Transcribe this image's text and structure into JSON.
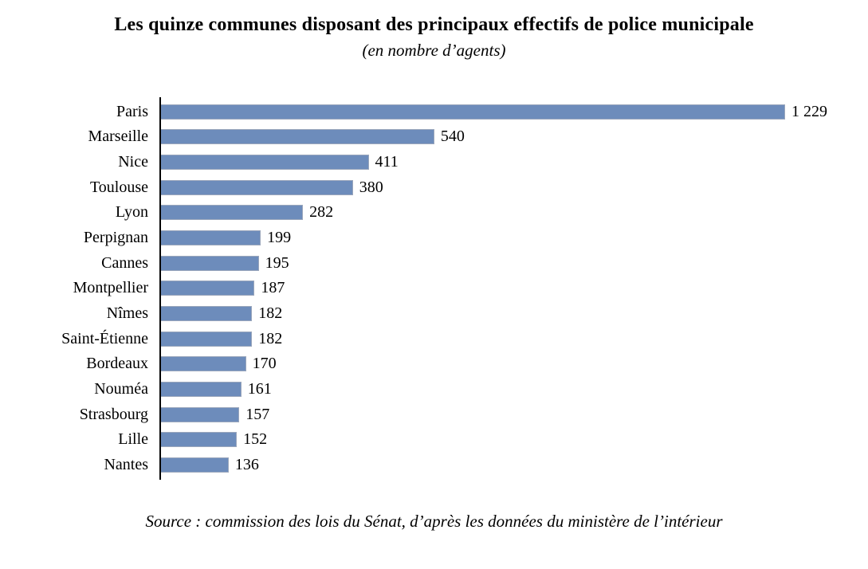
{
  "chart_data": {
    "type": "bar",
    "orientation": "horizontal",
    "title": "Les quinze communes disposant des principaux effectifs de police municipale",
    "subtitle": "(en nombre d’agents)",
    "source_note": "Source : commission des lois du Sénat, d’après les données du ministère de l’intérieur",
    "categories": [
      "Paris",
      "Marseille",
      "Nice",
      "Toulouse",
      "Lyon",
      "Perpignan",
      "Cannes",
      "Montpellier",
      "Nîmes",
      "Saint-Étienne",
      "Bordeaux",
      "Nouméa",
      "Strasbourg",
      "Lille",
      "Nantes"
    ],
    "values": [
      1229,
      540,
      411,
      380,
      282,
      199,
      195,
      187,
      182,
      182,
      170,
      161,
      157,
      152,
      136
    ],
    "value_labels": [
      "1 229",
      "540",
      "411",
      "380",
      "282",
      "199",
      "195",
      "187",
      "182",
      "182",
      "170",
      "161",
      "157",
      "152",
      "136"
    ],
    "xlim": [
      0,
      1229
    ],
    "xlabel": "",
    "ylabel": "",
    "grid": false,
    "legend": false,
    "data_labels_position": "end-of-bar",
    "colors": {
      "bar_fill": "#6D8CBB",
      "bar_border": "#9BA7BC",
      "axis": "#000000",
      "text": "#000000",
      "background": "#FFFFFF"
    }
  }
}
